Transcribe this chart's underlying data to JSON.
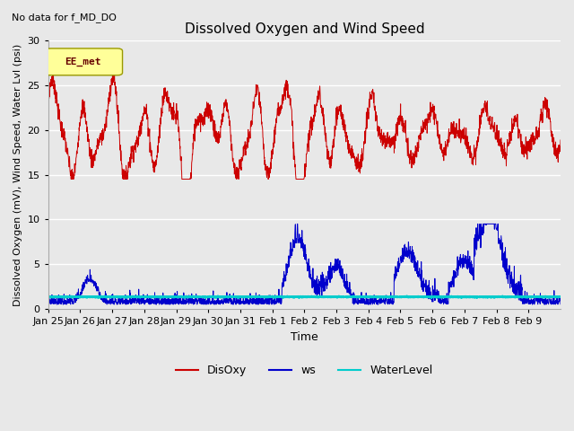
{
  "title": "Dissolved Oxygen and Wind Speed",
  "subtitle": "No data for f_MD_DO",
  "xlabel": "Time",
  "ylabel": "Dissolved Oxygen (mV), Wind Speed, Water Lvl (psi)",
  "ylim": [
    0,
    30
  ],
  "yticks": [
    0,
    5,
    10,
    15,
    20,
    25,
    30
  ],
  "bg_color": "#e8e8e8",
  "plot_bg": "#e8e8e8",
  "disoxy_color": "#cc0000",
  "ws_color": "#0000cc",
  "water_color": "#00cccc",
  "legend_box_color": "#ffff99",
  "legend_box_label": "EE_met",
  "xtick_labels": [
    "Jan 25",
    "Jan 26",
    "Jan 27",
    "Jan 28",
    "Jan 29",
    "Jan 30",
    "Jan 31",
    "Feb 1",
    "Feb 2",
    "Feb 3",
    "Feb 4",
    "Feb 5",
    "Feb 6",
    "Feb 7",
    "Feb 8",
    "Feb 9"
  ],
  "n_days": 16
}
